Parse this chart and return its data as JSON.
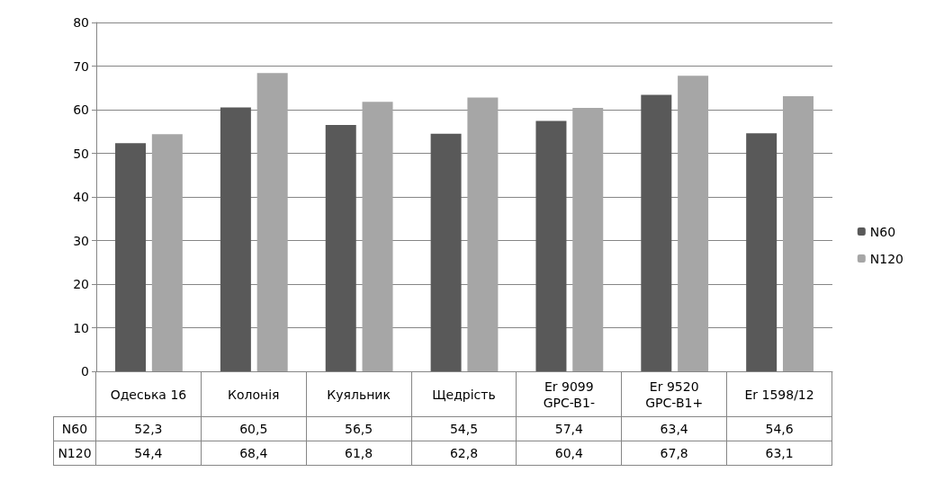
{
  "chart_data": {
    "type": "bar",
    "categories": [
      "Одеська 16",
      "Колонія",
      "Куяльник",
      "Щедрість",
      "Er 9099 GPC-B1-",
      "Er 9520 GPC-B1+",
      "Er 1598/12"
    ],
    "series": [
      {
        "name": "N60",
        "color": "#595959",
        "values": [
          52.3,
          60.5,
          56.5,
          54.5,
          57.4,
          63.4,
          54.6
        ],
        "value_labels": [
          "52,3",
          "60,5",
          "56,5",
          "54,5",
          "57,4",
          "63,4",
          "54,6"
        ]
      },
      {
        "name": "N120",
        "color": "#a6a6a6",
        "values": [
          54.4,
          68.4,
          61.8,
          62.8,
          60.4,
          67.8,
          63.1
        ],
        "value_labels": [
          "54,4",
          "68,4",
          "61,8",
          "62,8",
          "60,4",
          "67,8",
          "63,1"
        ]
      }
    ],
    "ylim": [
      0,
      80
    ],
    "yticks": [
      0,
      10,
      20,
      30,
      40,
      50,
      60,
      70,
      80
    ],
    "grid": "y",
    "legend": "right"
  }
}
